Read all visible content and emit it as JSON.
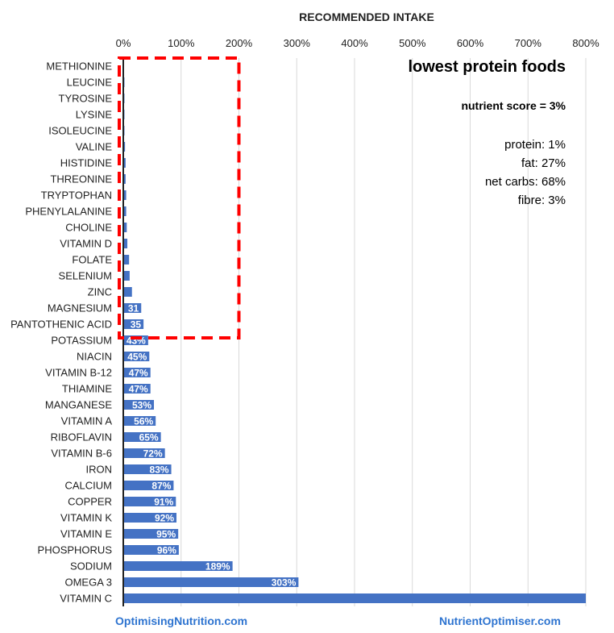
{
  "chart_data": {
    "type": "bar",
    "orientation": "horizontal",
    "title": "RECOMMENDED INTAKE",
    "xlabel": "RECOMMENDED INTAKE",
    "ylabel": "",
    "xlim": [
      0,
      800
    ],
    "x_ticks": [
      "0%",
      "100%",
      "200%",
      "300%",
      "400%",
      "500%",
      "600%",
      "700%",
      "800%"
    ],
    "grid": true,
    "categories": [
      "METHIONINE",
      "LEUCINE",
      "TYROSINE",
      "LYSINE",
      "ISOLEUCINE",
      "VALINE",
      "HISTIDINE",
      "THREONINE",
      "TRYPTOPHAN",
      "PHENYLALANINE",
      "CHOLINE",
      "VITAMIN D",
      "FOLATE",
      "SELENIUM",
      "ZINC",
      "MAGNESIUM",
      "PANTOTHENIC ACID",
      "POTASSIUM",
      "NIACIN",
      "VITAMIN B-12",
      "THIAMINE",
      "MANGANESE",
      "VITAMIN A",
      "RIBOFLAVIN",
      "VITAMIN B-6",
      "IRON",
      "CALCIUM",
      "COPPER",
      "VITAMIN K",
      "VITAMIN E",
      "PHOSPHORUS",
      "SODIUM",
      "OMEGA 3",
      "VITAMIN C"
    ],
    "values": [
      1,
      2,
      2,
      2,
      2,
      3,
      4,
      4,
      5,
      5,
      6,
      7,
      10,
      11,
      15,
      31,
      35,
      43,
      45,
      47,
      47,
      53,
      56,
      65,
      72,
      83,
      87,
      91,
      92,
      95,
      96,
      189,
      303,
      800
    ],
    "data_labels": [
      "",
      "",
      "",
      "",
      "",
      "",
      "",
      "",
      "",
      "",
      "",
      "",
      "",
      "",
      "",
      "31",
      "35",
      "43%",
      "45%",
      "47%",
      "47%",
      "53%",
      "56%",
      "65%",
      "72%",
      "83%",
      "87%",
      "91%",
      "92%",
      "95%",
      "96%",
      "189%",
      "303%",
      ""
    ],
    "highlight_box": {
      "x_range": [
        0,
        200
      ],
      "from_category": "METHIONINE",
      "to_category": "PANTOTHENIC ACID",
      "color": "#ff0000"
    },
    "bar_color": "#4472c4"
  },
  "annotations": {
    "title": "lowest protein foods",
    "score": "nutrient score = 3%",
    "macros": [
      "protein: 1%",
      "fat: 27%",
      "net carbs: 68%",
      "fibre: 3%"
    ]
  },
  "footer": {
    "left": "OptimisingNutrition.com",
    "right": "NutrientOptimiser.com",
    "color": "#2e74d0"
  }
}
